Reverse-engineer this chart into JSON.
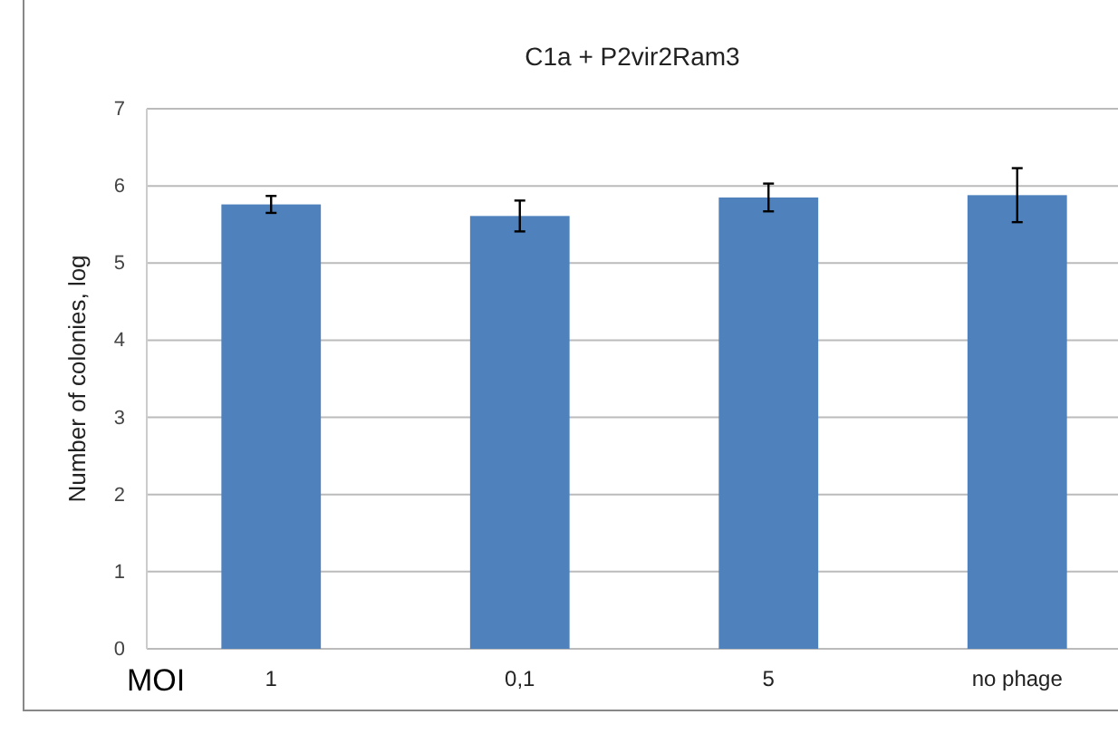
{
  "chart_data": {
    "type": "bar",
    "title": "C1a + P2vir2Ram3",
    "ylabel": "Number of colonies, log",
    "categories": [
      "1",
      "0,1",
      "5",
      "no phage"
    ],
    "values": [
      5.76,
      5.61,
      5.85,
      5.88
    ],
    "errors": [
      0.11,
      0.2,
      0.18,
      0.35
    ],
    "color": "#4f81bd",
    "ylim": [
      0,
      7
    ],
    "yticks": [
      0,
      1,
      2,
      3,
      4,
      5,
      6,
      7
    ],
    "grid": "y",
    "annotations": [
      "MOI"
    ]
  }
}
